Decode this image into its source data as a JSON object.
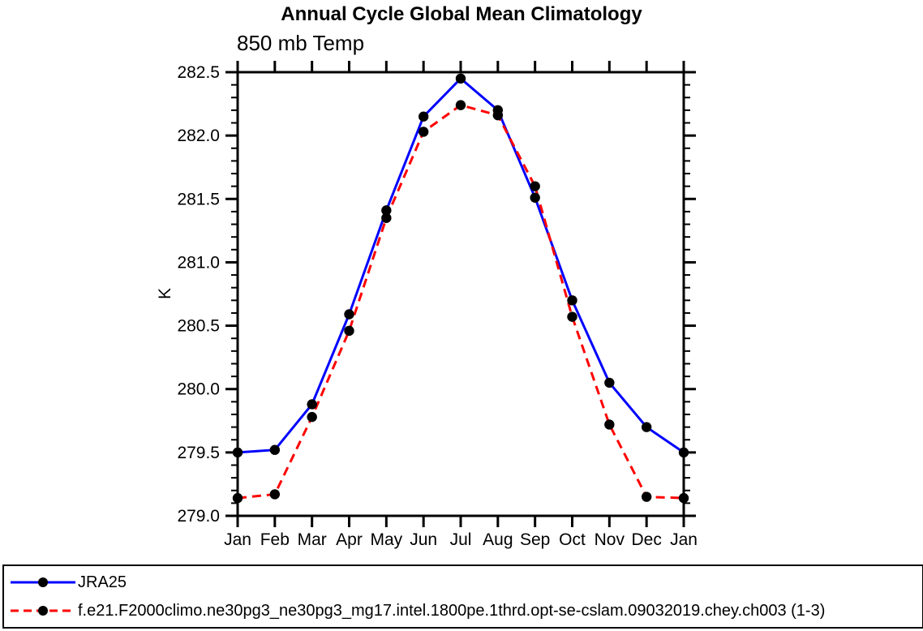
{
  "chart_data": {
    "type": "line",
    "title": "Annual Cycle Global Mean Climatology",
    "subtitle": "850 mb Temp",
    "xlabel": "",
    "ylabel": "K",
    "categories": [
      "Jan",
      "Feb",
      "Mar",
      "Apr",
      "May",
      "Jun",
      "Jul",
      "Aug",
      "Sep",
      "Oct",
      "Nov",
      "Dec",
      "Jan"
    ],
    "ylim": [
      279.0,
      282.5
    ],
    "ytick_major_step": 0.5,
    "ytick_minor_step": 0.1,
    "ytick_labels": [
      "279.0",
      "279.5",
      "280.0",
      "280.5",
      "281.0",
      "281.5",
      "282.0",
      "282.5"
    ],
    "grid": false,
    "legend_position": "bottom-box",
    "axis_color": "#000000",
    "marker_color": "#000000",
    "series": [
      {
        "name": "JRA25",
        "color": "#0000ff",
        "style": "solid",
        "marker": "filled-circle",
        "values": [
          279.5,
          279.52,
          279.88,
          280.59,
          281.41,
          282.15,
          282.45,
          282.2,
          281.51,
          280.7,
          280.05,
          279.7,
          279.5
        ]
      },
      {
        "name": "f.e21.F2000climo.ne30pg3_ne30pg3_mg17.intel.1800pe.1thrd.opt-se-cslam.09032019.chey.ch003 (1-3)",
        "color": "#ff0000",
        "style": "dashed",
        "marker": "filled-circle",
        "values": [
          279.14,
          279.17,
          279.78,
          280.46,
          281.35,
          282.03,
          282.24,
          282.16,
          281.6,
          280.57,
          279.72,
          279.15,
          279.14
        ]
      }
    ]
  }
}
